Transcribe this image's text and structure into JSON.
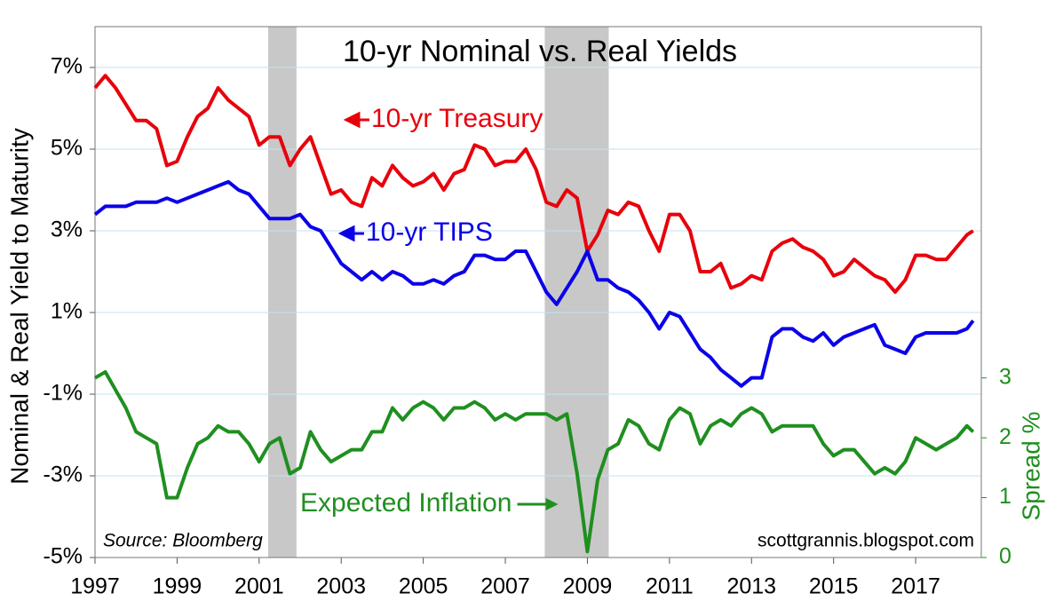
{
  "chart_data": {
    "type": "line",
    "title": "10-yr Nominal vs. Real Yields",
    "y_label": "Nominal & Real Yield to Maturity",
    "y2_label": "Spread %",
    "source": "Source: Bloomberg",
    "credit": "scottgrannis.blogspot.com",
    "x": [
      1997,
      1997.25,
      1997.5,
      1997.75,
      1998,
      1998.25,
      1998.5,
      1998.75,
      1999,
      1999.25,
      1999.5,
      1999.75,
      2000,
      2000.25,
      2000.5,
      2000.75,
      2001,
      2001.25,
      2001.5,
      2001.75,
      2002,
      2002.25,
      2002.5,
      2002.75,
      2003,
      2003.25,
      2003.5,
      2003.75,
      2004,
      2004.25,
      2004.5,
      2004.75,
      2005,
      2005.25,
      2005.5,
      2005.75,
      2006,
      2006.25,
      2006.5,
      2006.75,
      2007,
      2007.25,
      2007.5,
      2007.75,
      2008,
      2008.25,
      2008.5,
      2008.75,
      2009,
      2009.25,
      2009.5,
      2009.75,
      2010,
      2010.25,
      2010.5,
      2010.75,
      2011,
      2011.25,
      2011.5,
      2011.75,
      2012,
      2012.25,
      2012.5,
      2012.75,
      2013,
      2013.25,
      2013.5,
      2013.75,
      2014,
      2014.25,
      2014.5,
      2014.75,
      2015,
      2015.25,
      2015.5,
      2015.75,
      2016,
      2016.25,
      2016.5,
      2016.75,
      2017,
      2017.25,
      2017.5,
      2017.75,
      2018,
      2018.25,
      2018.4
    ],
    "series": [
      {
        "name": "10-yr Treasury",
        "color": "#e8000b",
        "values": [
          6.5,
          6.8,
          6.5,
          6.1,
          5.7,
          5.7,
          5.5,
          4.6,
          4.7,
          5.3,
          5.8,
          6.0,
          6.5,
          6.2,
          6.0,
          5.8,
          5.1,
          5.3,
          5.3,
          4.6,
          5.0,
          5.3,
          4.6,
          3.9,
          4.0,
          3.7,
          3.6,
          4.3,
          4.1,
          4.6,
          4.3,
          4.1,
          4.2,
          4.4,
          4.0,
          4.4,
          4.5,
          5.1,
          5.0,
          4.6,
          4.7,
          4.7,
          5.0,
          4.5,
          3.7,
          3.6,
          4.0,
          3.8,
          2.5,
          2.9,
          3.5,
          3.4,
          3.7,
          3.6,
          3.0,
          2.5,
          3.4,
          3.4,
          3.0,
          2.0,
          2.0,
          2.2,
          1.6,
          1.7,
          1.9,
          1.8,
          2.5,
          2.7,
          2.8,
          2.6,
          2.5,
          2.3,
          1.9,
          2.0,
          2.3,
          2.1,
          1.9,
          1.8,
          1.5,
          1.8,
          2.4,
          2.4,
          2.3,
          2.3,
          2.6,
          2.9,
          3.0
        ]
      },
      {
        "name": "10-yr TIPS",
        "color": "#0a00e8",
        "values": [
          3.4,
          3.6,
          3.6,
          3.6,
          3.7,
          3.7,
          3.7,
          3.8,
          3.7,
          3.8,
          3.9,
          4.0,
          4.1,
          4.2,
          4.0,
          3.9,
          3.6,
          3.3,
          3.3,
          3.3,
          3.4,
          3.1,
          3.0,
          2.6,
          2.2,
          2.0,
          1.8,
          2.0,
          1.8,
          2.0,
          1.9,
          1.7,
          1.7,
          1.8,
          1.7,
          1.9,
          2.0,
          2.4,
          2.4,
          2.3,
          2.3,
          2.5,
          2.5,
          2.0,
          1.5,
          1.2,
          1.6,
          2.0,
          2.5,
          1.8,
          1.8,
          1.6,
          1.5,
          1.3,
          1.0,
          0.6,
          1.0,
          0.9,
          0.5,
          0.1,
          -0.1,
          -0.4,
          -0.6,
          -0.8,
          -0.6,
          -0.6,
          0.4,
          0.6,
          0.6,
          0.4,
          0.3,
          0.5,
          0.2,
          0.4,
          0.5,
          0.6,
          0.7,
          0.2,
          0.1,
          0.0,
          0.4,
          0.5,
          0.5,
          0.5,
          0.5,
          0.6,
          0.8
        ]
      },
      {
        "name": "Expected Inflation",
        "color": "#1f8f1f",
        "axis": "y2",
        "values": [
          3.0,
          3.1,
          2.8,
          2.5,
          2.1,
          2.0,
          1.9,
          1.0,
          1.0,
          1.5,
          1.9,
          2.0,
          2.2,
          2.1,
          2.1,
          1.9,
          1.6,
          1.9,
          2.0,
          1.4,
          1.5,
          2.1,
          1.8,
          1.6,
          1.7,
          1.8,
          1.8,
          2.1,
          2.1,
          2.5,
          2.3,
          2.5,
          2.6,
          2.5,
          2.3,
          2.5,
          2.5,
          2.6,
          2.5,
          2.3,
          2.4,
          2.3,
          2.4,
          2.4,
          2.4,
          2.3,
          2.4,
          1.4,
          0.1,
          1.3,
          1.8,
          1.9,
          2.3,
          2.2,
          1.9,
          1.8,
          2.3,
          2.5,
          2.4,
          1.9,
          2.2,
          2.3,
          2.2,
          2.4,
          2.5,
          2.4,
          2.1,
          2.2,
          2.2,
          2.2,
          2.2,
          1.9,
          1.7,
          1.8,
          1.8,
          1.6,
          1.4,
          1.5,
          1.4,
          1.6,
          2.0,
          1.9,
          1.8,
          1.9,
          2.0,
          2.2,
          2.1
        ]
      }
    ],
    "shaded": [
      [
        2001.22,
        2001.91
      ],
      [
        2007.96,
        2009.52
      ]
    ],
    "xlim": [
      1997,
      2018.6
    ],
    "xticks": [
      1997,
      1999,
      2001,
      2003,
      2005,
      2007,
      2009,
      2011,
      2013,
      2015,
      2017
    ],
    "ylim": [
      -5,
      8
    ],
    "yticks": [
      {
        "value": 7,
        "label": "7%"
      },
      {
        "value": 5,
        "label": "5%"
      },
      {
        "value": 3,
        "label": "3%"
      },
      {
        "value": 1,
        "label": "1%"
      },
      {
        "value": -1,
        "label": "-1%"
      },
      {
        "value": -3,
        "label": "-3%"
      },
      {
        "value": -5,
        "label": "-5%"
      }
    ],
    "y2lim": [
      0,
      8.87
    ],
    "y2ticks": [
      0,
      1,
      2,
      3
    ],
    "grid": true
  }
}
